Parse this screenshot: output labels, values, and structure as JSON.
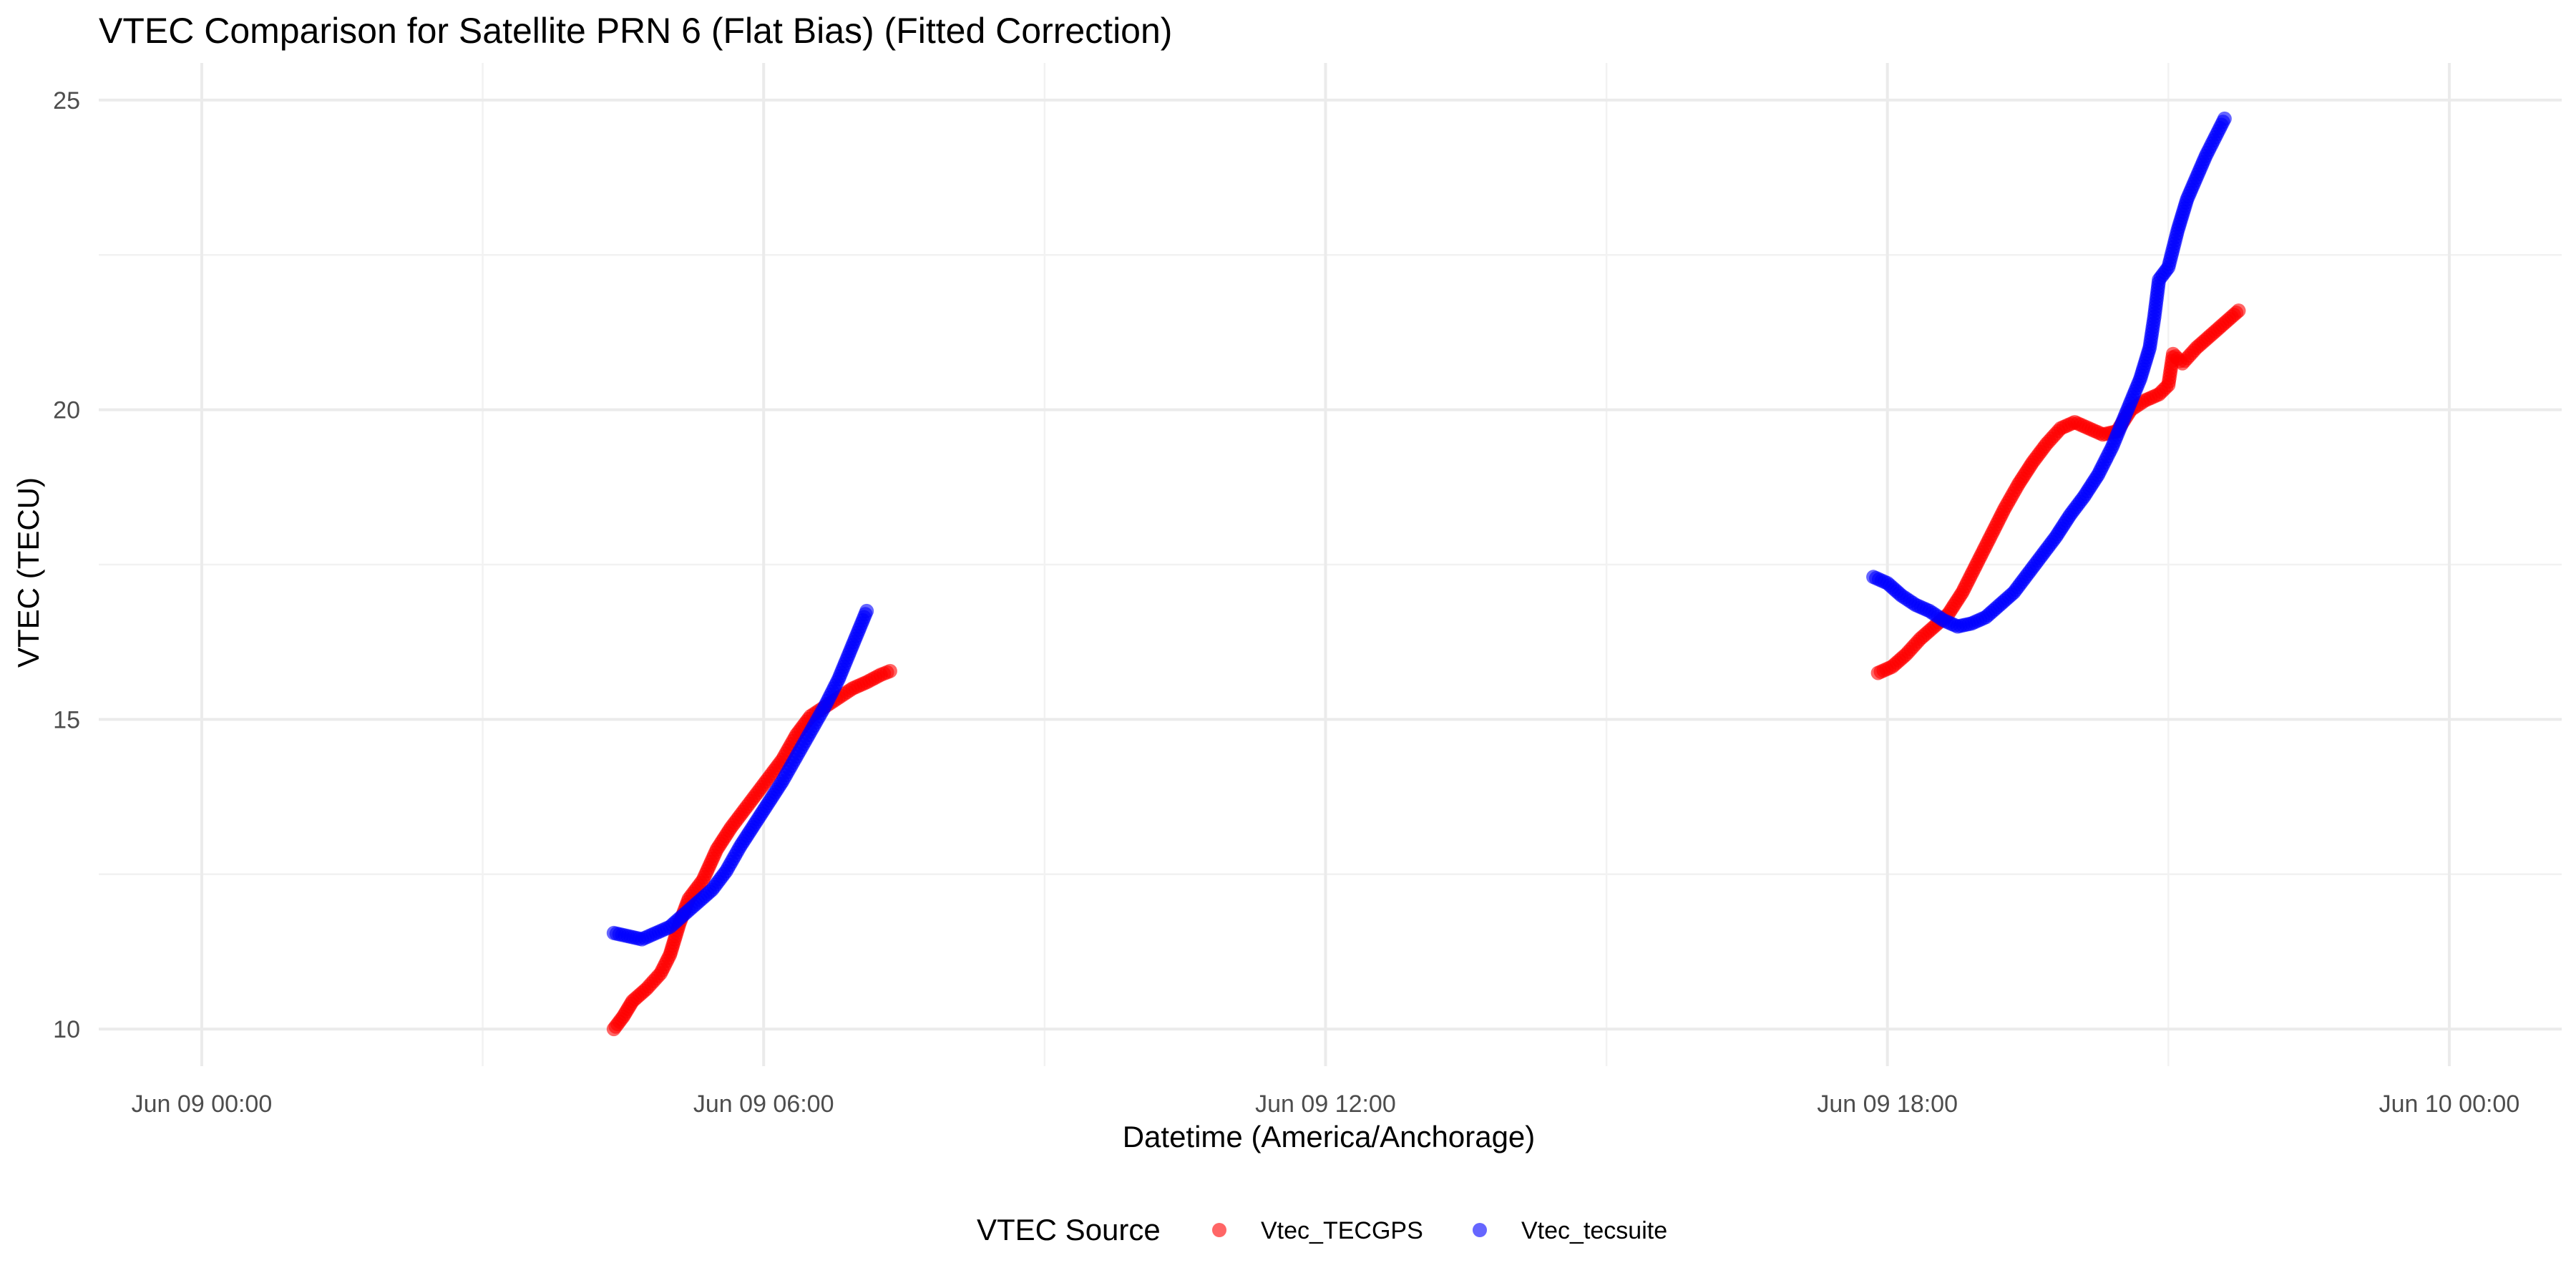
{
  "chart_data": {
    "type": "scatter",
    "title": "VTEC Comparison for Satellite PRN 6 (Flat Bias)   (Fitted Correction)",
    "xlabel": "Datetime (America/Anchorage)",
    "ylabel": "VTEC (TECU)",
    "x_unit": "hours since Jun 09 00:00",
    "xlim": [
      -1.1,
      25.2
    ],
    "ylim": [
      9.4,
      25.6
    ],
    "x_ticks": [
      {
        "value": 0,
        "label": "Jun 09 00:00"
      },
      {
        "value": 6,
        "label": "Jun 09 06:00"
      },
      {
        "value": 12,
        "label": "Jun 09 12:00"
      },
      {
        "value": 18,
        "label": "Jun 09 18:00"
      },
      {
        "value": 24,
        "label": "Jun 10 00:00"
      }
    ],
    "x_minor_ticks": [
      3,
      9,
      15,
      21
    ],
    "y_ticks": [
      {
        "value": 10,
        "label": "10"
      },
      {
        "value": 15,
        "label": "15"
      },
      {
        "value": 20,
        "label": "20"
      },
      {
        "value": 25,
        "label": "25"
      }
    ],
    "y_minor_ticks": [
      12.5,
      17.5,
      22.5
    ],
    "grid": true,
    "legend": {
      "title": "VTEC Source",
      "position": "bottom"
    },
    "series": [
      {
        "name": "Vtec_TECGPS",
        "color": "#ff0000",
        "segments": [
          [
            [
              4.4,
              10.0
            ],
            [
              4.5,
              10.2
            ],
            [
              4.6,
              10.45
            ],
            [
              4.75,
              10.65
            ],
            [
              4.9,
              10.9
            ],
            [
              5.0,
              11.2
            ],
            [
              5.1,
              11.7
            ],
            [
              5.2,
              12.1
            ],
            [
              5.35,
              12.4
            ],
            [
              5.5,
              12.9
            ],
            [
              5.65,
              13.25
            ],
            [
              5.8,
              13.55
            ],
            [
              6.0,
              13.95
            ],
            [
              6.2,
              14.35
            ],
            [
              6.35,
              14.75
            ],
            [
              6.5,
              15.05
            ],
            [
              6.65,
              15.2
            ],
            [
              6.8,
              15.35
            ],
            [
              6.95,
              15.5
            ],
            [
              7.1,
              15.6
            ],
            [
              7.25,
              15.72
            ],
            [
              7.35,
              15.78
            ]
          ],
          [
            [
              17.9,
              15.75
            ],
            [
              18.05,
              15.85
            ],
            [
              18.2,
              16.05
            ],
            [
              18.35,
              16.3
            ],
            [
              18.5,
              16.5
            ],
            [
              18.65,
              16.7
            ],
            [
              18.8,
              17.05
            ],
            [
              18.95,
              17.5
            ],
            [
              19.1,
              17.95
            ],
            [
              19.25,
              18.4
            ],
            [
              19.4,
              18.8
            ],
            [
              19.55,
              19.15
            ],
            [
              19.7,
              19.45
            ],
            [
              19.85,
              19.7
            ],
            [
              20.0,
              19.8
            ],
            [
              20.15,
              19.7
            ],
            [
              20.3,
              19.6
            ],
            [
              20.45,
              19.65
            ],
            [
              20.6,
              20.0
            ],
            [
              20.75,
              20.15
            ],
            [
              20.9,
              20.25
            ],
            [
              21.0,
              20.4
            ],
            [
              21.05,
              20.9
            ],
            [
              21.15,
              20.75
            ],
            [
              21.3,
              21.0
            ],
            [
              21.45,
              21.2
            ],
            [
              21.6,
              21.4
            ],
            [
              21.75,
              21.6
            ]
          ]
        ]
      },
      {
        "name": "Vtec_tecsuite",
        "color": "#0000ff",
        "segments": [
          [
            [
              4.4,
              11.55
            ],
            [
              4.55,
              11.5
            ],
            [
              4.7,
              11.45
            ],
            [
              4.85,
              11.55
            ],
            [
              5.0,
              11.65
            ],
            [
              5.15,
              11.85
            ],
            [
              5.3,
              12.05
            ],
            [
              5.45,
              12.25
            ],
            [
              5.6,
              12.55
            ],
            [
              5.75,
              12.95
            ],
            [
              5.9,
              13.3
            ],
            [
              6.05,
              13.65
            ],
            [
              6.2,
              14.0
            ],
            [
              6.35,
              14.4
            ],
            [
              6.5,
              14.8
            ],
            [
              6.65,
              15.2
            ],
            [
              6.8,
              15.65
            ],
            [
              6.95,
              16.2
            ],
            [
              7.1,
              16.75
            ]
          ],
          [
            [
              17.85,
              17.3
            ],
            [
              18.0,
              17.2
            ],
            [
              18.15,
              17.0
            ],
            [
              18.3,
              16.85
            ],
            [
              18.45,
              16.75
            ],
            [
              18.6,
              16.6
            ],
            [
              18.75,
              16.5
            ],
            [
              18.9,
              16.55
            ],
            [
              19.05,
              16.65
            ],
            [
              19.2,
              16.85
            ],
            [
              19.35,
              17.05
            ],
            [
              19.5,
              17.35
            ],
            [
              19.65,
              17.65
            ],
            [
              19.8,
              17.95
            ],
            [
              19.95,
              18.3
            ],
            [
              20.1,
              18.6
            ],
            [
              20.25,
              18.95
            ],
            [
              20.4,
              19.4
            ],
            [
              20.55,
              19.95
            ],
            [
              20.7,
              20.5
            ],
            [
              20.8,
              21.0
            ],
            [
              20.85,
              21.5
            ],
            [
              20.9,
              22.1
            ],
            [
              21.0,
              22.3
            ],
            [
              21.1,
              22.9
            ],
            [
              21.2,
              23.4
            ],
            [
              21.3,
              23.75
            ],
            [
              21.4,
              24.1
            ],
            [
              21.5,
              24.4
            ],
            [
              21.6,
              24.7
            ]
          ]
        ]
      }
    ]
  }
}
